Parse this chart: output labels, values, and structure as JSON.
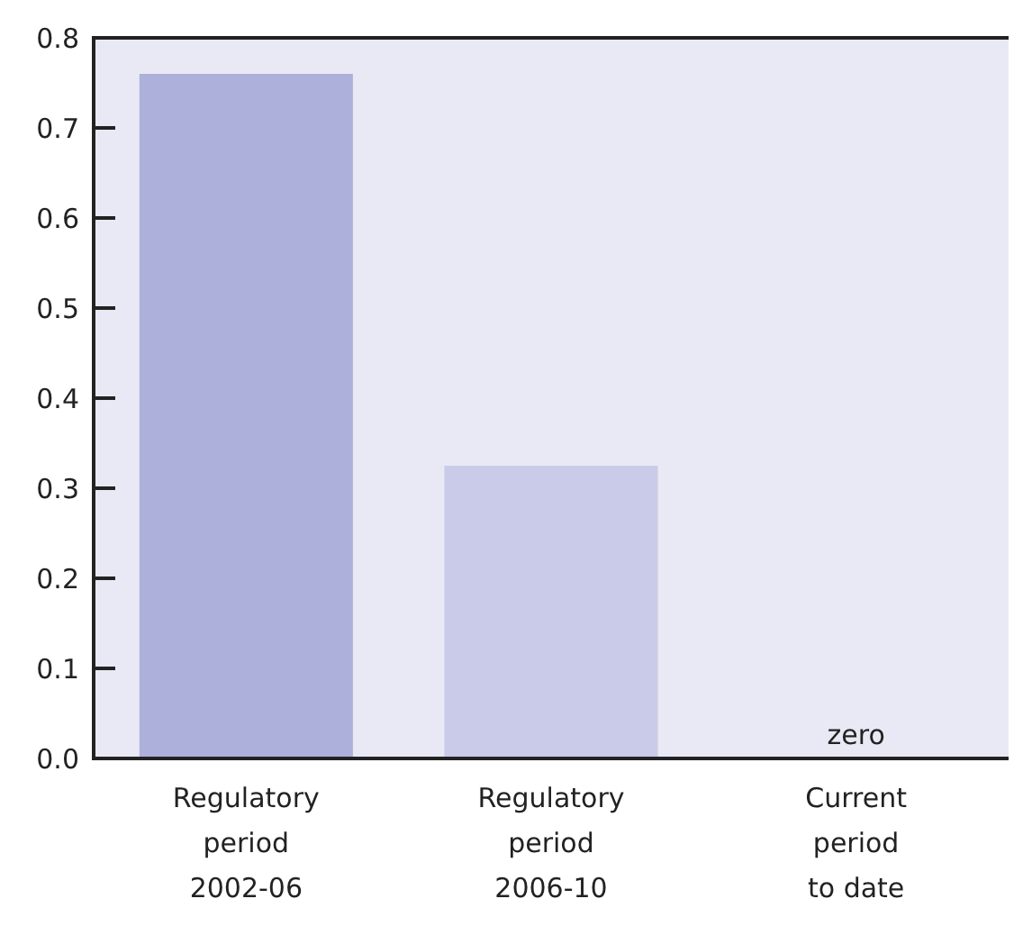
{
  "chart_data": {
    "type": "bar",
    "categories": [
      "Regulatory\nperiod\n2002-06",
      "Regulatory\nperiod\n2006-10",
      "Current\nperiod\nto date"
    ],
    "values": [
      0.76,
      0.325,
      0
    ],
    "colors": [
      "#adb0da",
      "#cacbe8",
      "#cacbe8"
    ],
    "value_labels": [
      null,
      null,
      "zero"
    ],
    "ylim": [
      0,
      0.8
    ],
    "yticks": [
      {
        "value": 0,
        "label": "0.0"
      },
      0.1,
      0.2,
      0.3,
      0.4,
      0.5,
      0.6,
      0.7,
      0.8
    ],
    "grid": false
  }
}
